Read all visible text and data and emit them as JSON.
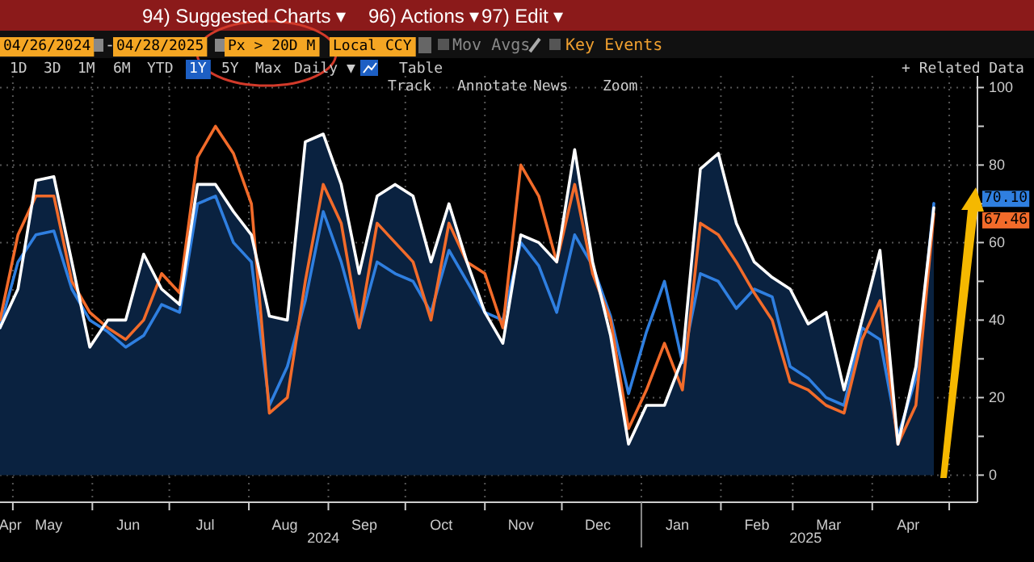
{
  "chart_data": {
    "type": "line",
    "x": [
      "2024-04-26",
      "2024-05-03",
      "2024-05-10",
      "2024-05-17",
      "2024-05-24",
      "2024-05-31",
      "2024-06-07",
      "2024-06-14",
      "2024-06-21",
      "2024-06-28",
      "2024-07-05",
      "2024-07-12",
      "2024-07-19",
      "2024-07-26",
      "2024-08-02",
      "2024-08-09",
      "2024-08-16",
      "2024-08-23",
      "2024-08-30",
      "2024-09-06",
      "2024-09-13",
      "2024-09-20",
      "2024-09-27",
      "2024-10-04",
      "2024-10-11",
      "2024-10-18",
      "2024-10-25",
      "2024-11-01",
      "2024-11-08",
      "2024-11-15",
      "2024-11-22",
      "2024-11-29",
      "2024-12-06",
      "2024-12-13",
      "2024-12-20",
      "2024-12-27",
      "2025-01-03",
      "2025-01-10",
      "2025-01-17",
      "2025-01-24",
      "2025-01-31",
      "2025-02-07",
      "2025-02-14",
      "2025-02-21",
      "2025-02-28",
      "2025-03-07",
      "2025-03-14",
      "2025-03-21",
      "2025-03-28",
      "2025-04-04",
      "2025-04-11",
      "2025-04-18",
      "2025-04-25"
    ],
    "series": [
      {
        "type": "area",
        "color": "#ffffff",
        "values": [
          38,
          48,
          76,
          77,
          55,
          33,
          40,
          40,
          57,
          48,
          44,
          75,
          75,
          68,
          62,
          41,
          40,
          86,
          88,
          75,
          52,
          72,
          75,
          72,
          55,
          70,
          55,
          42,
          34,
          62,
          60,
          55,
          84,
          55,
          36,
          8,
          18,
          18,
          30,
          79,
          83,
          65,
          55,
          51,
          48,
          39,
          42,
          22,
          40,
          58,
          8,
          28,
          69
        ]
      },
      {
        "color": "#2f7fe0",
        "values": [
          38,
          55,
          62,
          63,
          48,
          40,
          37,
          33,
          36,
          44,
          42,
          70,
          72,
          60,
          55,
          18,
          28,
          45,
          68,
          55,
          38,
          55,
          52,
          50,
          42,
          58,
          50,
          42,
          40,
          60,
          54,
          42,
          62,
          54,
          41,
          21,
          37,
          50,
          29,
          52,
          50,
          43,
          48,
          46,
          28,
          25,
          20,
          18,
          38,
          35,
          10,
          25,
          70.1
        ]
      },
      {
        "color": "#f26b2a",
        "values": [
          40,
          62,
          72,
          72,
          50,
          42,
          38,
          35,
          40,
          52,
          47,
          82,
          90,
          83,
          70,
          16,
          20,
          50,
          75,
          65,
          38,
          65,
          60,
          55,
          40,
          65,
          55,
          52,
          38,
          80,
          72,
          55,
          75,
          52,
          40,
          12,
          22,
          34,
          22,
          65,
          62,
          55,
          47,
          40,
          24,
          22,
          18,
          16,
          35,
          45,
          8,
          18,
          67.46
        ]
      }
    ],
    "xlim": [
      "2024-04-26",
      "2025-05-12"
    ],
    "xticks": [
      {
        "value": "2024-04-30",
        "label": "Apr"
      },
      {
        "value": "2024-05-01",
        "label": null
      },
      {
        "value": "2024-05-15",
        "label": "May"
      },
      {
        "value": "2024-06-01",
        "label": null
      },
      {
        "value": "2024-06-15",
        "label": "Jun"
      },
      {
        "value": "2024-07-01",
        "label": null
      },
      {
        "value": "2024-07-15",
        "label": "Jul"
      },
      {
        "value": "2024-08-01",
        "label": null
      },
      {
        "value": "2024-08-15",
        "label": "Aug"
      },
      {
        "value": "2024-09-01",
        "label": null
      },
      {
        "value": "2024-09-15",
        "label": "Sep"
      },
      {
        "value": "2024-10-01",
        "label": null
      },
      {
        "value": "2024-10-15",
        "label": "Oct"
      },
      {
        "value": "2024-11-01",
        "label": null
      },
      {
        "value": "2024-11-15",
        "label": "Nov"
      },
      {
        "value": "2024-12-01",
        "label": null
      },
      {
        "value": "2024-12-15",
        "label": "Dec"
      },
      {
        "value": "2025-01-01",
        "label": null
      },
      {
        "value": "2025-01-15",
        "label": "Jan"
      },
      {
        "value": "2025-02-01",
        "label": null
      },
      {
        "value": "2025-02-15",
        "label": "Feb"
      },
      {
        "value": "2025-03-01",
        "label": null
      },
      {
        "value": "2025-03-15",
        "label": "Mar"
      },
      {
        "value": "2025-04-01",
        "label": null
      },
      {
        "value": "2025-04-15",
        "label": "Apr"
      },
      {
        "value": "2025-05-01",
        "label": null
      }
    ],
    "x2lim": [
      "2024-04-26",
      "2025-05-12"
    ],
    "x2ticks": [
      {
        "value": "2024-08-30",
        "label": "2024"
      },
      {
        "value": "2025-01-01",
        "label": null
      },
      {
        "value": "2025-03-06",
        "label": "2025"
      }
    ],
    "ylim": [
      -7,
      103
    ],
    "yticks": [
      0,
      {
        "value": 10,
        "label": null
      },
      20,
      {
        "value": 30,
        "label": null
      },
      40,
      {
        "value": 50,
        "label": null
      },
      60,
      {
        "value": 70,
        "label": null
      },
      80,
      {
        "value": 90,
        "label": null
      },
      100
    ],
    "grid": true,
    "line_style": "solid",
    "annotations": [
      "94) Suggested Charts ▾",
      "96) Actions ▾",
      "97) Edit ▾",
      "04/26/2024",
      "-",
      "04/28/2025",
      "Px > 20D M",
      "Local CCY",
      "Mov Avgs",
      "Key Events",
      "1D",
      "3D",
      "1M",
      "6M",
      "YTD",
      "1Y",
      "5Y",
      "Max",
      "Daily ▼",
      "Table",
      "+ Related Data",
      "Track",
      "Annotate",
      "News",
      "Zoom",
      "70.10",
      "67.46"
    ]
  }
}
